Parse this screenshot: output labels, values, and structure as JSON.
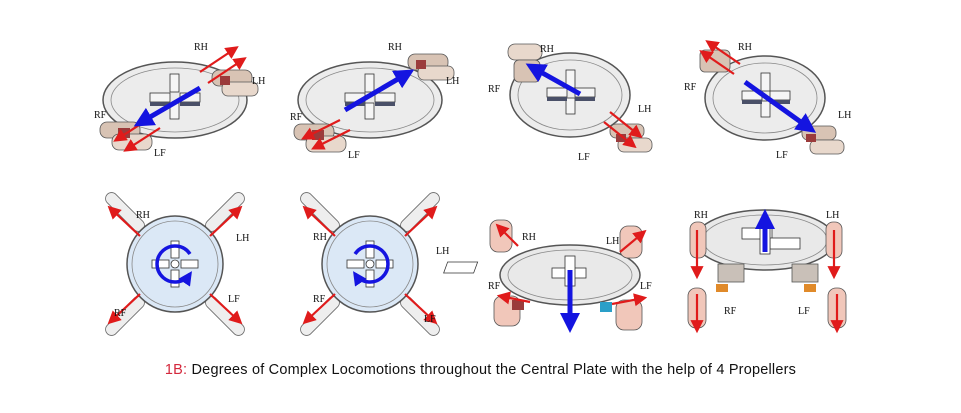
{
  "figure": {
    "panels": [
      {
        "labels": {
          "rh": "RH",
          "lh": "LH",
          "rf": "RF",
          "lf": "LF"
        }
      },
      {
        "labels": {
          "rh": "RH",
          "lh": "LH",
          "rf": "RF",
          "lf": "LF"
        }
      },
      {
        "labels": {
          "rh": "RH",
          "lh": "LH",
          "rf": "RF",
          "lf": "LF"
        }
      },
      {
        "labels": {
          "rh": "RH",
          "lh": "LH",
          "rf": "RF",
          "lf": "LF"
        }
      },
      {
        "labels": {
          "rh": "RH",
          "lh": "LH",
          "rf": "RF",
          "lf": "LF"
        }
      },
      {
        "labels": {
          "rh": "RH",
          "lh": "LH",
          "rf": "RF",
          "lf": "LF"
        }
      },
      {
        "labels": {
          "rh": "RH",
          "lh": "LH",
          "rf": "RF",
          "lf": "LF"
        }
      },
      {
        "labels": {
          "rh": "RH",
          "lh": "LH",
          "rf": "RF",
          "lf": "LF"
        }
      }
    ],
    "caption_prefix": "1B:",
    "caption_text": "Degrees of Complex Locomotions throughout the Central Plate with the help of 4 Propellers"
  },
  "colors": {
    "thrust_arrow": "#e01b1b",
    "motion_arrow": "#1414e0",
    "caption_prefix": "#d4283c",
    "plate_fill_top_view": "#dbe8f6",
    "plate_fill_perspective": "#e9e9e9"
  }
}
